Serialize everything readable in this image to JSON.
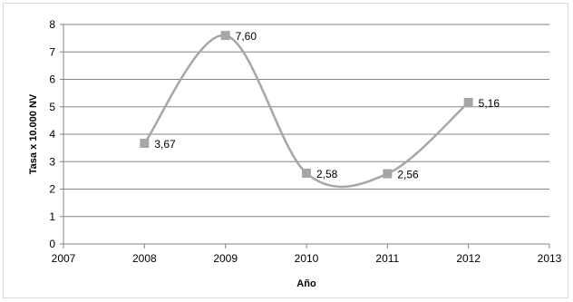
{
  "chart_data": {
    "type": "line",
    "xlabel": "Año",
    "ylabel": "Tasa x 10.000 NV",
    "xlim": [
      2007,
      2013
    ],
    "ylim": [
      0,
      8
    ],
    "x_ticks": [
      "2007",
      "2008",
      "2009",
      "2010",
      "2011",
      "2012",
      "2013"
    ],
    "y_ticks": [
      "0",
      "1",
      "2",
      "3",
      "4",
      "5",
      "6",
      "7",
      "8"
    ],
    "grid": "horizontal",
    "smooth": true,
    "series": [
      {
        "x": [
          2008,
          2009,
          2010,
          2011,
          2012
        ],
        "values": [
          3.67,
          7.6,
          2.58,
          2.56,
          5.16
        ],
        "labels": [
          "3,67",
          "7,60",
          "2,58",
          "2,56",
          "5,16"
        ],
        "color": "#a6a6a6",
        "marker": "square"
      }
    ]
  }
}
